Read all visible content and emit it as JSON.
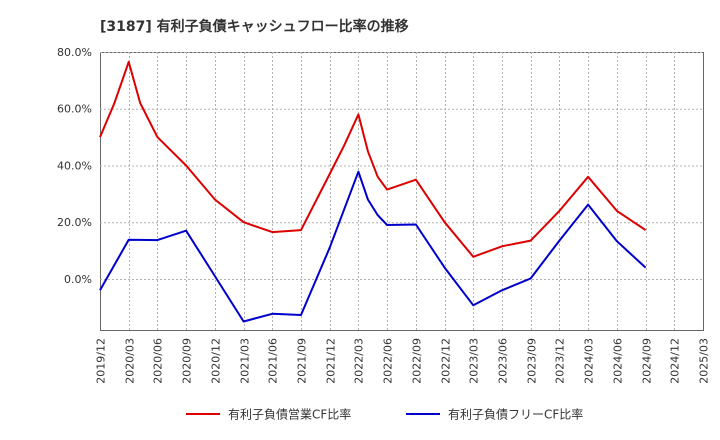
{
  "chart_data": {
    "type": "line",
    "title": "[3187]  有利子負債キャッシュフロー比率の推移",
    "x_ticks": [
      "2019/12",
      "2020/03",
      "2020/06",
      "2020/09",
      "2020/12",
      "2021/03",
      "2021/06",
      "2021/09",
      "2021/12",
      "2022/03",
      "2022/06",
      "2022/09",
      "2022/12",
      "2023/03",
      "2023/06",
      "2023/09",
      "2023/12",
      "2024/03",
      "2024/06",
      "2024/09",
      "2024/12",
      "2025/03"
    ],
    "y_ticks": [
      "0.0%",
      "20.0%",
      "40.0%",
      "60.0%",
      "80.0%"
    ],
    "y_tick_values": [
      0,
      20,
      40,
      60,
      80
    ],
    "ylim": [
      -18,
      80
    ],
    "xlim": [
      0,
      21
    ],
    "grid": "dashed",
    "legend_position": "bottom",
    "series": [
      {
        "name": "有利子負債営業CF比率",
        "color": "#dd0000",
        "points": [
          [
            0,
            50
          ],
          [
            0.5,
            62
          ],
          [
            1,
            76.5
          ],
          [
            1.4,
            62
          ],
          [
            2,
            50
          ],
          [
            3,
            40
          ],
          [
            4,
            28
          ],
          [
            5,
            20
          ],
          [
            6,
            16.5
          ],
          [
            7,
            17.2
          ],
          [
            8,
            37
          ],
          [
            8.5,
            47
          ],
          [
            9,
            58
          ],
          [
            9.33,
            45
          ],
          [
            9.67,
            36
          ],
          [
            10,
            31.5
          ],
          [
            11,
            35
          ],
          [
            12,
            20
          ],
          [
            13,
            7.8
          ],
          [
            14,
            11.5
          ],
          [
            15,
            13.5
          ],
          [
            16,
            24
          ],
          [
            17,
            36
          ],
          [
            18,
            24
          ],
          [
            19,
            17.2
          ]
        ]
      },
      {
        "name": "有利子負債フリーCF比率",
        "color": "#0000cc",
        "points": [
          [
            0,
            -4
          ],
          [
            1,
            13.8
          ],
          [
            2,
            13.7
          ],
          [
            3,
            17
          ],
          [
            4,
            1
          ],
          [
            5,
            -15
          ],
          [
            6,
            -12.3
          ],
          [
            7,
            -12.7
          ],
          [
            8,
            11
          ],
          [
            9,
            37.8
          ],
          [
            9.33,
            28
          ],
          [
            9.67,
            22.5
          ],
          [
            10,
            19
          ],
          [
            11,
            19.2
          ],
          [
            12,
            4
          ],
          [
            13,
            -9.3
          ],
          [
            14,
            -4
          ],
          [
            15,
            0.2
          ],
          [
            16,
            13.5
          ],
          [
            17,
            26.2
          ],
          [
            18,
            13.3
          ],
          [
            19,
            4
          ]
        ]
      }
    ]
  }
}
